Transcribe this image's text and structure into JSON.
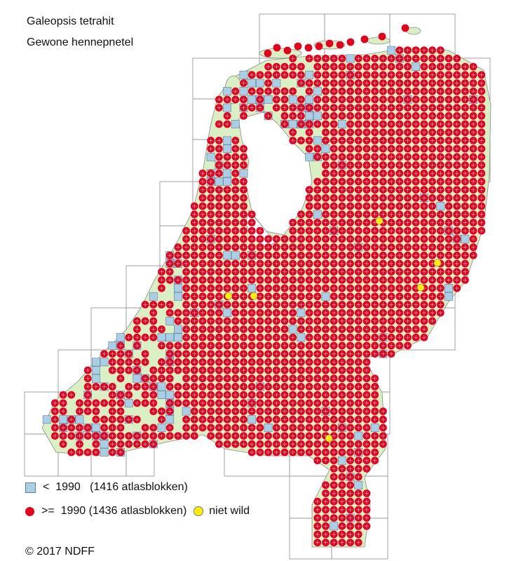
{
  "title": {
    "scientific_name": "Galeopsis tetrahit",
    "common_name": "Gewone hennepnetel"
  },
  "legend": {
    "before_1990": {
      "symbol": "<",
      "year": "1990",
      "count_text": "(1416 atlasblokken)"
    },
    "from_1990": {
      "symbol": ">=",
      "year": "1990",
      "count_text": "(1436 atlasblokken)"
    },
    "not_wild": "niet wild"
  },
  "copyright": "© 2017 NDFF",
  "colors": {
    "red_dot": "#e8001b",
    "blue_square": "#a9cfe6",
    "blue_square_border": "#5f7f99",
    "land": "#d8f0c4",
    "yellow_dot": "#ffef00",
    "grid_line": "#9a9a9a",
    "cross_line": "#9fb4de"
  },
  "map": {
    "country": "Netherlands",
    "symbols": [
      "blue-square",
      "red-dot",
      "yellow-dot"
    ]
  }
}
